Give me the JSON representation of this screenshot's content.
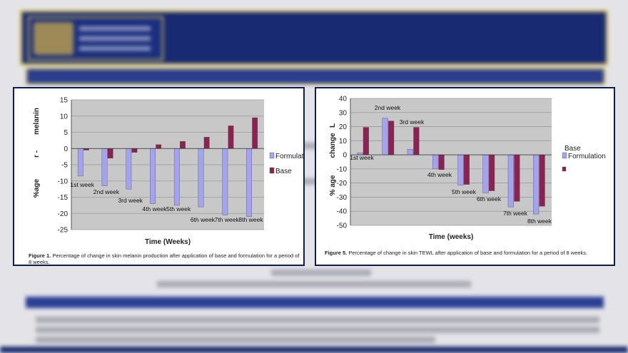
{
  "chart_data": [
    {
      "type": "bar",
      "categories": [
        "1st week",
        "2nd week",
        "3rd week",
        "4th week",
        "5th week",
        "6th week",
        "7th week",
        "8th week"
      ],
      "series": [
        {
          "name": "Formulation",
          "values": [
            -8.5,
            -11.5,
            -12.5,
            -17,
            -17.5,
            -18,
            -20.5,
            -21
          ],
          "color": "#a3a3f2"
        },
        {
          "name": "Base",
          "values": [
            -0.5,
            -3,
            -1.2,
            1.2,
            2.2,
            3.5,
            7,
            9.5
          ],
          "color": "#8c2152"
        }
      ],
      "ylim": [
        -25,
        15
      ],
      "yticks": [
        "15",
        "10",
        "5",
        "0",
        "-5",
        "-10",
        "-15",
        "-20",
        "-25"
      ],
      "ylabel_top": "melanin",
      "ylabel_bottom": "%age",
      "ylabel_mid": "r -",
      "xlabel": "Time (Weeks)",
      "grid": true,
      "plot_bg": "#c8c8c8",
      "legend_position": "right",
      "caption_bold": "Figure 1.",
      "caption_text": " Percentage of change in skin melanin production after application of base and formulation for a period of 8 weeks."
    },
    {
      "type": "bar",
      "categories": [
        "1st week",
        "2nd week",
        "3rd week",
        "4th week",
        "5th week",
        "6th week",
        "7th week",
        "8th week"
      ],
      "series": [
        {
          "name": "Formulation",
          "values": [
            1.5,
            26,
            4,
            -10,
            -21.5,
            -27,
            -37,
            -42
          ],
          "color": "#a3a3f2"
        },
        {
          "name": "Base",
          "values": [
            19.5,
            24,
            19.5,
            -10.5,
            -21,
            -25.5,
            -33,
            -36.5
          ],
          "color": "#8c2152"
        }
      ],
      "ylim": [
        -50,
        40
      ],
      "yticks": [
        "40",
        "30",
        "20",
        "10",
        "0",
        "-10",
        "-20",
        "-30",
        "-40",
        "-50"
      ],
      "ylabel_top": "change",
      "ylabel_bottom": "% age",
      "ylabel_mid": "L",
      "xlabel": "Time (weeks)",
      "grid": true,
      "plot_bg": "#c8c8c8",
      "legend_position": "right",
      "legend_base_label": "Base",
      "legend_formulation_label": "Formulation",
      "caption_bold": "Figure 5.",
      "caption_text": " Percentage of change in skin TEWL after application of base and formulation for a period of 8 weeks."
    }
  ]
}
